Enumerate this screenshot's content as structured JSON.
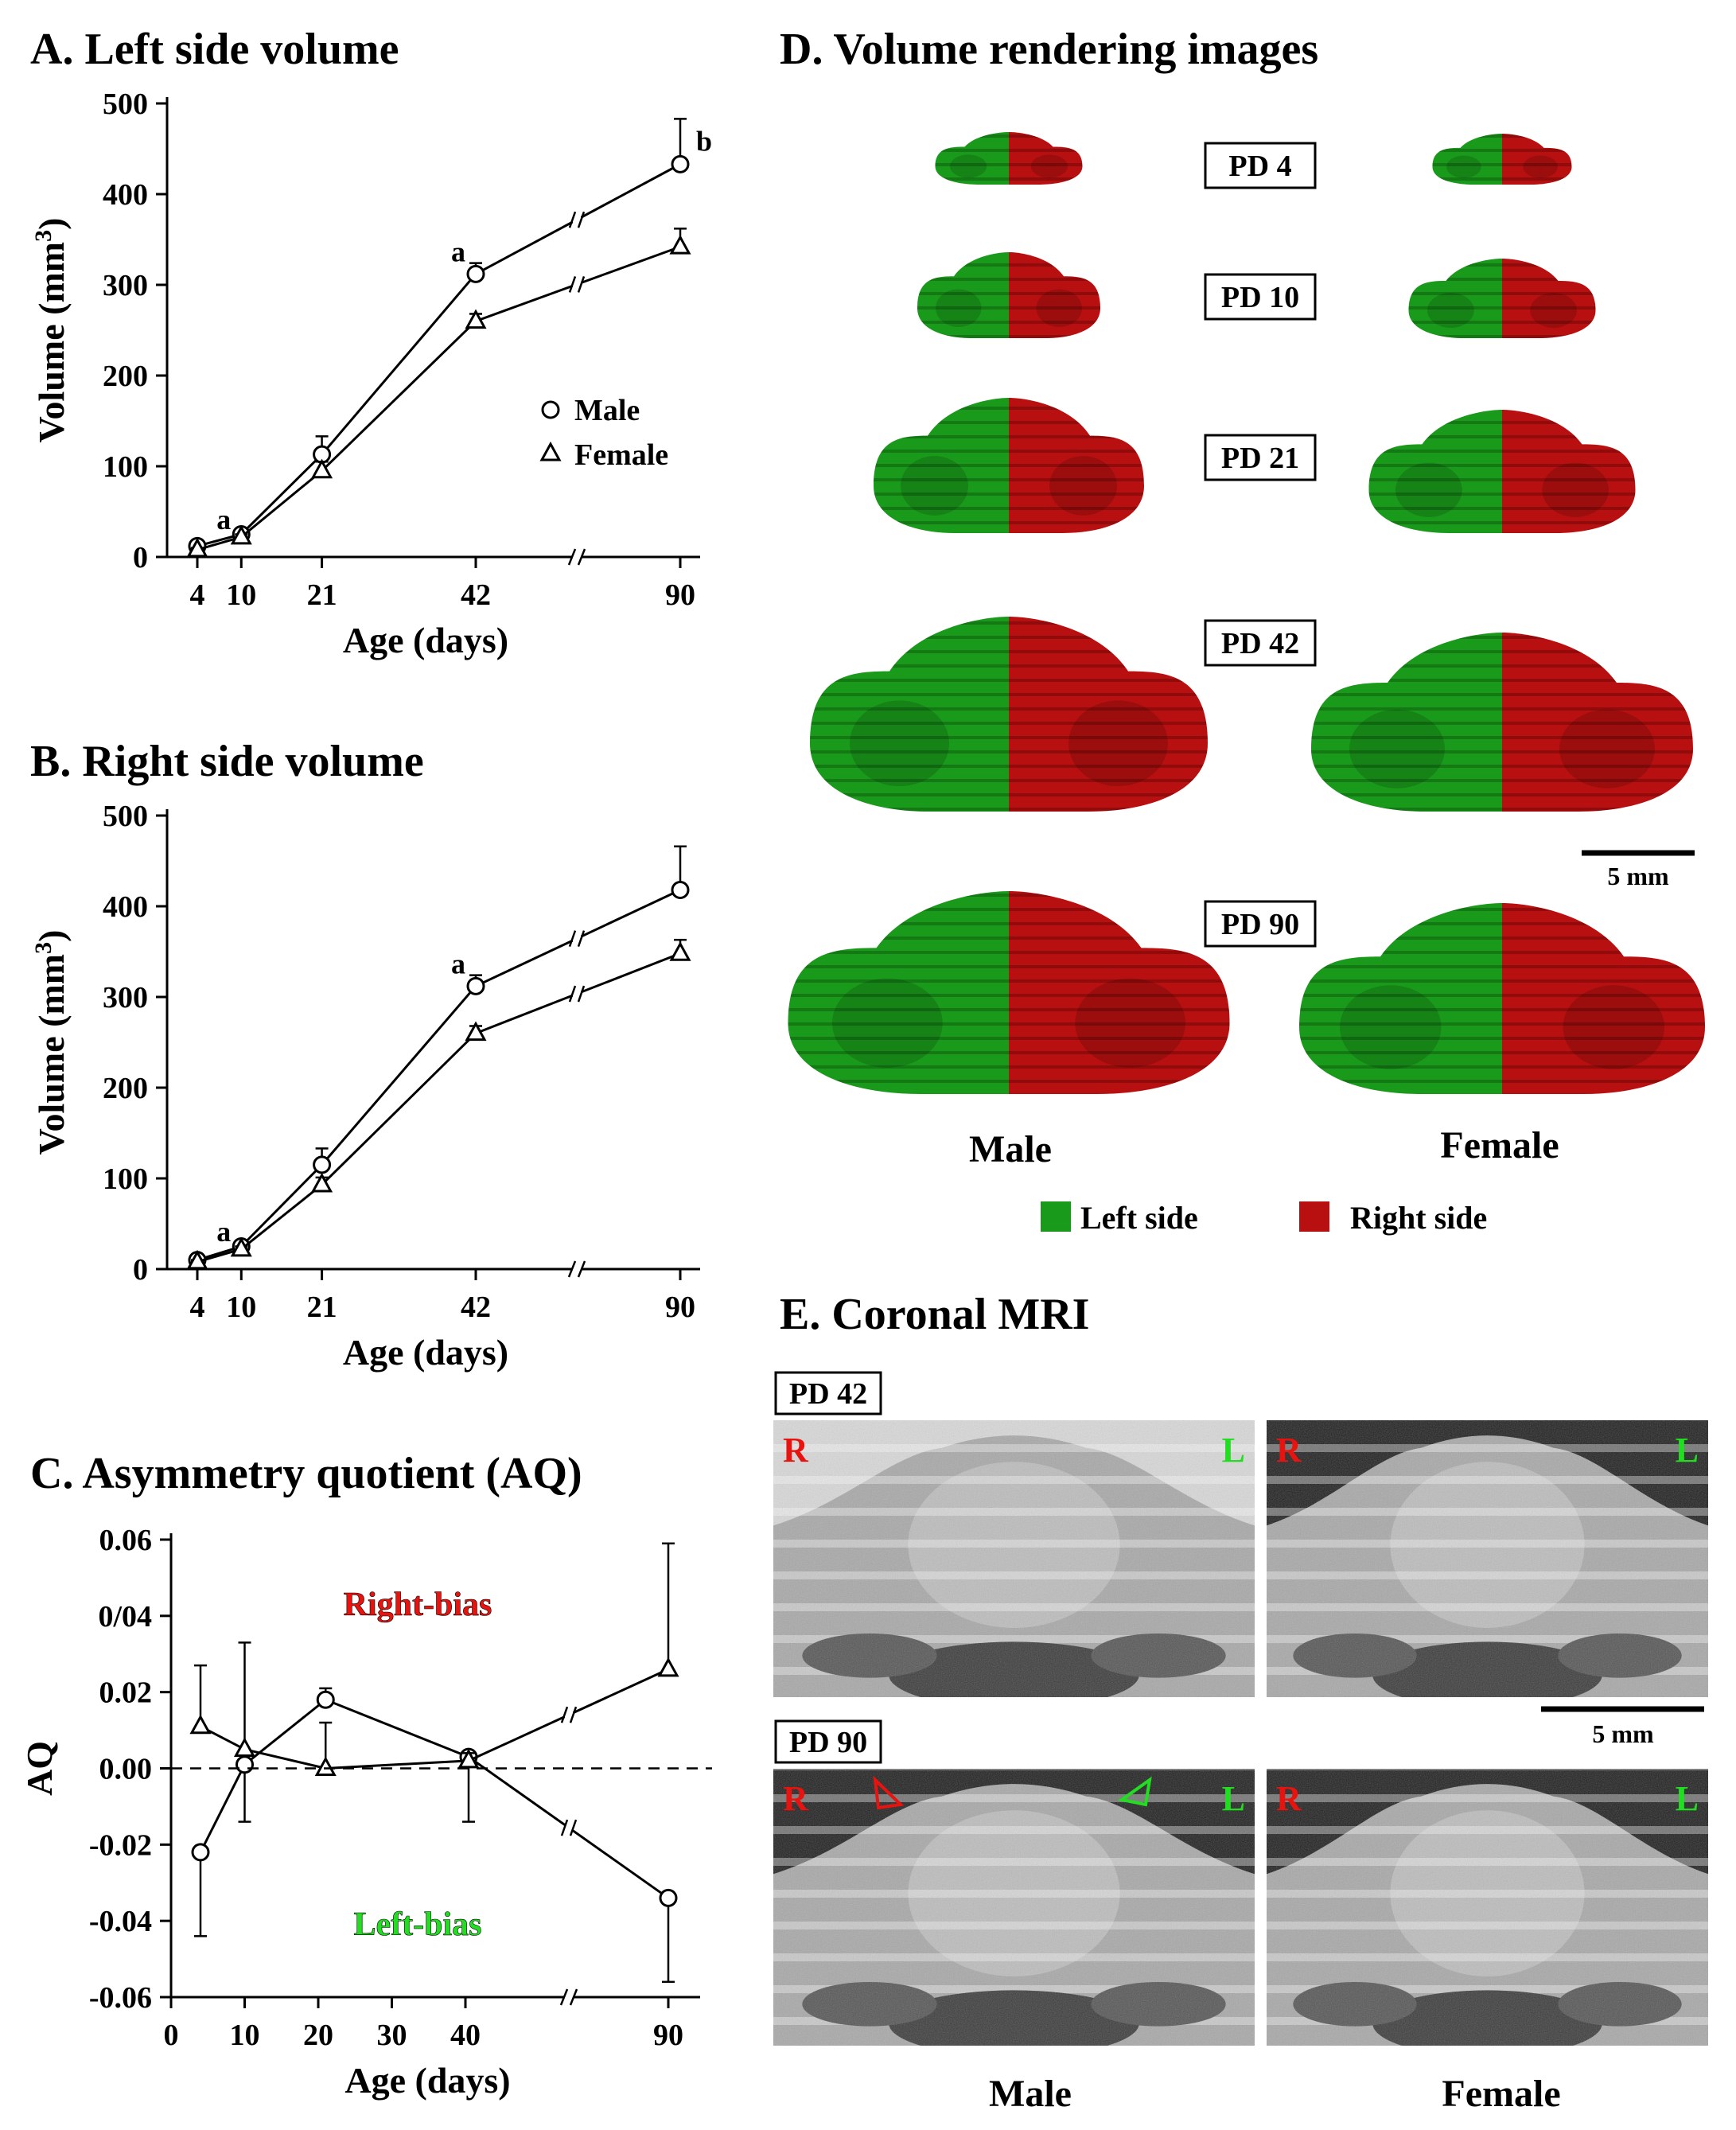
{
  "panels": {
    "a_title": "A. Left side volume",
    "b_title": "B. Right side volume",
    "c_title": "C. Asymmetry quotient (AQ)",
    "d_title": "D. Volume rendering images",
    "e_title": "E. Coronal MRI"
  },
  "chart_data": [
    {
      "type": "line",
      "title": "A. Left side volume",
      "xlabel": "Age (days)",
      "ylabel": "Volume (mm³)",
      "ylim": [
        0,
        500
      ],
      "yticks": [
        0,
        100,
        200,
        300,
        400,
        500
      ],
      "x": [
        4,
        10,
        21,
        42,
        90
      ],
      "xtick_labels": [
        "4",
        "10",
        "21",
        "42",
        "90"
      ],
      "axis_break": "between 42 and 90",
      "legend": [
        "Male",
        "Female"
      ],
      "legend_position": "right",
      "series": [
        {
          "name": "Male",
          "marker": "circle",
          "values": [
            12,
            25,
            113,
            312,
            433
          ],
          "errors": [
            3,
            4,
            20,
            12,
            50
          ]
        },
        {
          "name": "Female",
          "marker": "triangle",
          "values": [
            8,
            22,
            95,
            260,
            342
          ],
          "errors": [
            2,
            3,
            10,
            8,
            20
          ]
        }
      ],
      "annotations": [
        {
          "x": 10,
          "label": "a"
        },
        {
          "x": 42,
          "label": "a"
        },
        {
          "x": 90,
          "label": "b"
        }
      ]
    },
    {
      "type": "line",
      "title": "B. Right side volume",
      "xlabel": "Age (days)",
      "ylabel": "Volume (mm³)",
      "ylim": [
        0,
        500
      ],
      "yticks": [
        0,
        100,
        200,
        300,
        400,
        500
      ],
      "x": [
        4,
        10,
        21,
        42,
        90
      ],
      "xtick_labels": [
        "4",
        "10",
        "21",
        "42",
        "90"
      ],
      "axis_break": "between 42 and 90",
      "series": [
        {
          "name": "Male",
          "marker": "circle",
          "values": [
            10,
            25,
            115,
            312,
            418
          ],
          "errors": [
            3,
            4,
            18,
            12,
            48
          ]
        },
        {
          "name": "Female",
          "marker": "triangle",
          "values": [
            8,
            22,
            93,
            260,
            348
          ],
          "errors": [
            2,
            3,
            8,
            8,
            15
          ]
        }
      ],
      "annotations": [
        {
          "x": 10,
          "label": "a"
        },
        {
          "x": 42,
          "label": "a"
        }
      ]
    },
    {
      "type": "line",
      "title": "C. Asymmetry quotient (AQ)",
      "xlabel": "Age (days)",
      "ylabel": "AQ",
      "ylim": [
        -0.06,
        0.06
      ],
      "ytick_labels": [
        "0.06",
        "0/04",
        "0.02",
        "0.00",
        "-0.02",
        "-0.04",
        "-0.06"
      ],
      "xtick_labels": [
        "0",
        "10",
        "20",
        "30",
        "40",
        "90"
      ],
      "x": [
        4,
        10,
        21,
        42,
        90
      ],
      "axis_break": "between 40 and 90",
      "zero_line": "dashed",
      "series": [
        {
          "name": "Male",
          "marker": "circle",
          "values": [
            -0.022,
            0.001,
            0.018,
            0.003,
            -0.034
          ],
          "errors": [
            0.022,
            0.015,
            0.003,
            0.017,
            0.022
          ]
        },
        {
          "name": "Female",
          "marker": "triangle",
          "values": [
            0.011,
            0.005,
            0.0,
            0.002,
            0.026
          ],
          "errors": [
            0.016,
            0.028,
            0.012,
            0.002,
            0.033
          ]
        }
      ],
      "region_labels": {
        "upper": "Right-bias",
        "lower": "Left-bias"
      },
      "region_colors": {
        "upper": "#e8130f",
        "lower": "#22dd22"
      }
    }
  ],
  "renderings": {
    "stages": [
      "PD 4",
      "PD 10",
      "PD 21",
      "PD 42",
      "PD 90"
    ],
    "male_label": "Male",
    "female_label": "Female",
    "scale_label": "5 mm",
    "legend_left": "Left side",
    "legend_right": "Right side",
    "left_color": "#1a9a1a",
    "right_color": "#b81010"
  },
  "mri": {
    "pd42_label": "PD 42",
    "pd90_label": "PD 90",
    "r_label": "R",
    "l_label": "L",
    "scale_label": "5 mm",
    "male_label": "Male",
    "female_label": "Female",
    "r_color": "#e8130f",
    "l_color": "#22dd22"
  }
}
